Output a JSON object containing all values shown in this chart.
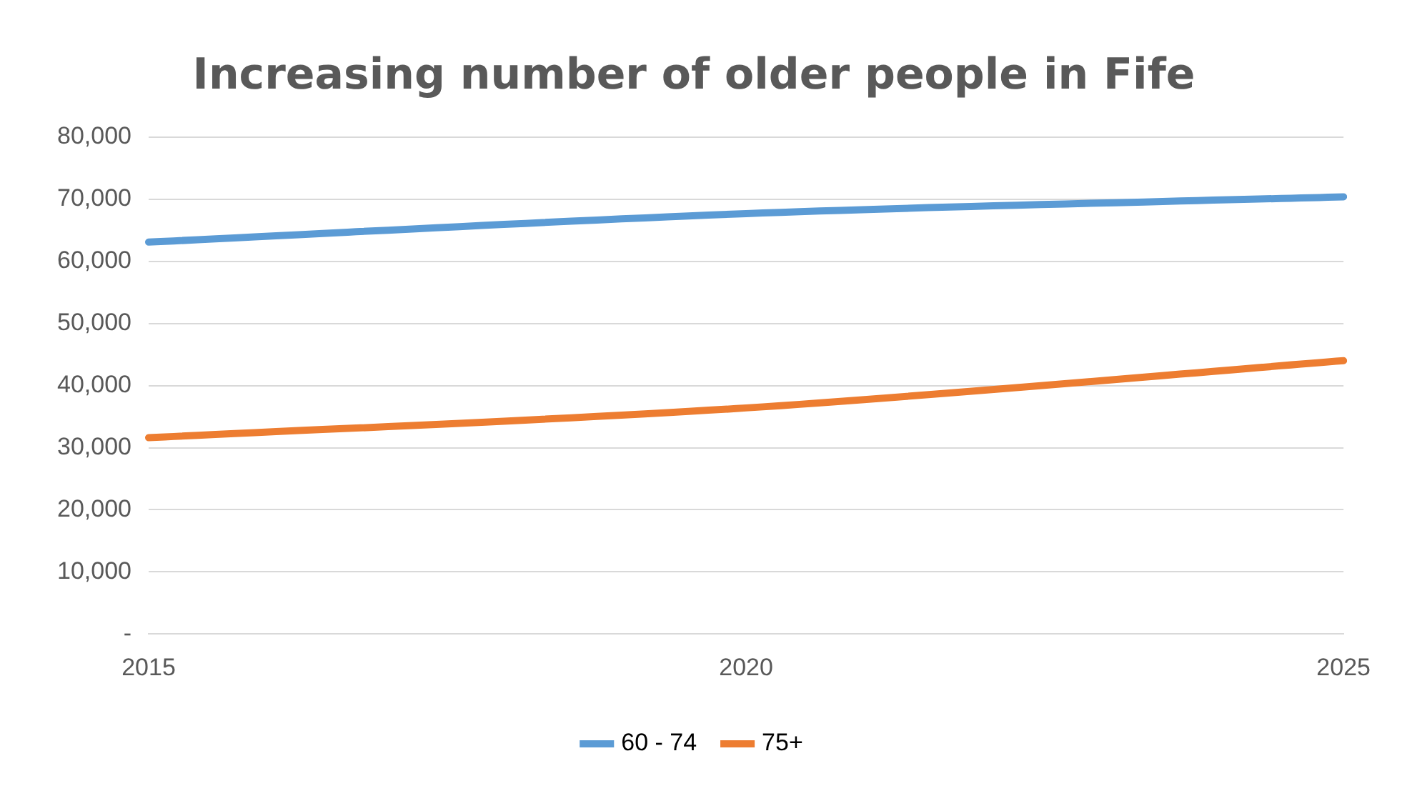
{
  "chart_data": {
    "type": "line",
    "title": "Increasing number of older people in Fife",
    "categories": [
      "2015",
      "2020",
      "2025"
    ],
    "series": [
      {
        "name": "60 - 74",
        "color": "#5b9bd5",
        "values": [
          63100,
          67700,
          70400
        ]
      },
      {
        "name": "75+",
        "color": "#ed7d31",
        "values": [
          31600,
          36400,
          44000
        ]
      }
    ],
    "ylim": [
      0,
      80000
    ],
    "yticks": [
      {
        "value": 0,
        "label": "-"
      },
      {
        "value": 10000,
        "label": "10,000"
      },
      {
        "value": 20000,
        "label": "20,000"
      },
      {
        "value": 30000,
        "label": "30,000"
      },
      {
        "value": 40000,
        "label": "40,000"
      },
      {
        "value": 50000,
        "label": "50,000"
      },
      {
        "value": 60000,
        "label": "60,000"
      },
      {
        "value": 70000,
        "label": "70,000"
      },
      {
        "value": 80000,
        "label": "80,000"
      }
    ],
    "grid": "y",
    "legend": "bottom",
    "marker": "none",
    "line_style": "solid"
  }
}
